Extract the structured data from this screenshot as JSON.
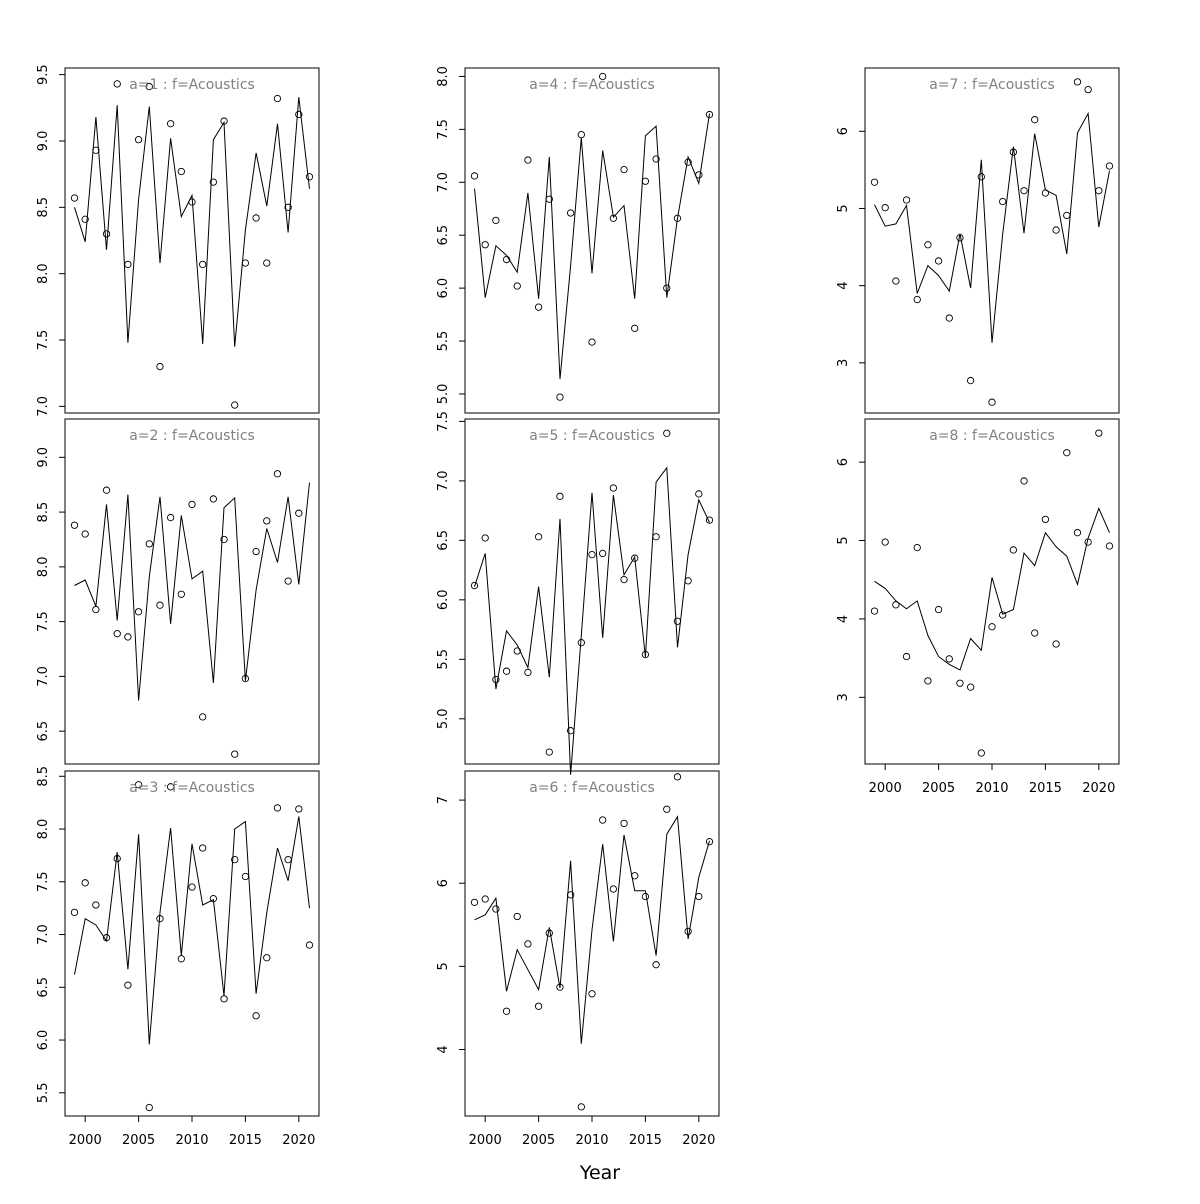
{
  "figure": {
    "xlabel": "Year"
  },
  "chart_data": [
    {
      "type": "line",
      "title": "a=1  :  f=Acoustics",
      "x_start": 1999,
      "ylim": [
        6.95,
        9.55
      ],
      "yticks": [
        "7.0",
        "7.5",
        "8.0",
        "8.5",
        "9.0",
        "9.5"
      ],
      "xticks": [],
      "observed": [
        8.57,
        8.41,
        8.93,
        8.3,
        9.43,
        8.07,
        9.01,
        9.41,
        7.3,
        9.13,
        8.77,
        8.54,
        8.07,
        8.69,
        9.15,
        7.01,
        8.08,
        8.42,
        8.08,
        9.32,
        8.5,
        9.2,
        8.73
      ],
      "fitted": [
        8.5,
        8.24,
        9.18,
        8.18,
        9.27,
        7.48,
        8.56,
        9.26,
        8.08,
        9.02,
        8.43,
        8.59,
        7.47,
        9.01,
        9.14,
        7.45,
        8.33,
        8.91,
        8.51,
        9.13,
        8.31,
        9.33,
        8.64
      ]
    },
    {
      "type": "line",
      "title": "a=2  :  f=Acoustics",
      "x_start": 1999,
      "ylim": [
        6.2,
        9.35
      ],
      "yticks": [
        "6.5",
        "7.0",
        "7.5",
        "8.0",
        "8.5",
        "9.0"
      ],
      "xticks": [],
      "observed": [
        8.38,
        8.3,
        7.61,
        8.7,
        7.39,
        7.36,
        7.59,
        8.21,
        7.65,
        8.45,
        7.75,
        8.57,
        6.63,
        8.62,
        8.25,
        6.29,
        6.98,
        8.14,
        8.42,
        8.85,
        7.87,
        8.49,
        null
      ],
      "fitted": [
        7.83,
        7.88,
        7.64,
        8.57,
        7.51,
        8.66,
        6.78,
        7.91,
        8.64,
        7.48,
        8.47,
        7.89,
        7.96,
        6.94,
        8.54,
        8.63,
        6.96,
        7.79,
        8.35,
        8.04,
        8.64,
        7.84,
        8.77
      ]
    },
    {
      "type": "line",
      "title": "a=3  :  f=Acoustics",
      "x_start": 1999,
      "ylim": [
        5.28,
        8.55
      ],
      "yticks": [
        "5.5",
        "6.0",
        "6.5",
        "7.0",
        "7.5",
        "8.0",
        "8.5"
      ],
      "xticks": [
        "2000",
        "2005",
        "2010",
        "2015",
        "2020"
      ],
      "observed": [
        7.21,
        7.49,
        7.28,
        6.97,
        7.72,
        6.52,
        8.42,
        5.36,
        7.15,
        8.4,
        6.77,
        7.45,
        7.82,
        7.34,
        6.39,
        7.71,
        7.55,
        6.23,
        6.78,
        8.2,
        7.71,
        8.19,
        6.9
      ],
      "fitted": [
        6.62,
        7.15,
        7.09,
        6.94,
        7.78,
        6.67,
        7.95,
        5.96,
        7.21,
        8.01,
        6.8,
        7.86,
        7.28,
        7.33,
        6.42,
        8.0,
        8.07,
        6.44,
        7.21,
        7.82,
        7.51,
        8.12,
        7.25
      ]
    },
    {
      "type": "line",
      "title": "a=4  :  f=Acoustics",
      "x_start": 1999,
      "ylim": [
        4.82,
        8.08
      ],
      "yticks": [
        "5.0",
        "5.5",
        "6.0",
        "6.5",
        "7.0",
        "7.5",
        "8.0"
      ],
      "xticks": [],
      "observed": [
        7.06,
        6.41,
        6.64,
        6.27,
        6.02,
        7.21,
        5.82,
        6.84,
        4.97,
        6.71,
        7.45,
        5.49,
        8.0,
        6.66,
        7.12,
        5.62,
        7.01,
        7.22,
        6.0,
        6.66,
        7.19,
        7.07,
        7.64
      ],
      "fitted": [
        6.94,
        5.91,
        6.4,
        6.31,
        6.15,
        6.9,
        5.9,
        7.24,
        5.14,
        6.21,
        7.42,
        6.14,
        7.3,
        6.67,
        6.78,
        5.9,
        7.44,
        7.53,
        5.91,
        6.66,
        7.24,
        6.99,
        7.65
      ]
    },
    {
      "type": "line",
      "title": "a=5  :  f=Acoustics",
      "x_start": 1999,
      "ylim": [
        4.62,
        7.52
      ],
      "yticks": [
        "5.0",
        "5.5",
        "6.0",
        "6.5",
        "7.0",
        "7.5"
      ],
      "xticks": [],
      "observed": [
        6.12,
        6.52,
        5.33,
        5.4,
        5.57,
        5.39,
        6.53,
        4.72,
        6.87,
        4.9,
        5.64,
        6.38,
        6.39,
        6.94,
        6.17,
        6.35,
        5.54,
        6.53,
        7.4,
        5.82,
        6.16,
        6.89,
        6.67
      ],
      "fitted": [
        6.11,
        6.39,
        5.25,
        5.74,
        5.62,
        5.43,
        6.11,
        5.35,
        6.68,
        4.53,
        5.7,
        6.9,
        5.68,
        6.88,
        6.21,
        6.36,
        5.52,
        6.99,
        7.11,
        5.6,
        6.38,
        6.84,
        6.65
      ]
    },
    {
      "type": "line",
      "title": "a=6  :  f=Acoustics",
      "x_start": 1999,
      "ylim": [
        3.2,
        7.35
      ],
      "yticks": [
        "4",
        "5",
        "6",
        "7"
      ],
      "xticks": [
        "2000",
        "2005",
        "2010",
        "2015",
        "2020"
      ],
      "observed": [
        5.77,
        5.81,
        5.69,
        4.46,
        5.6,
        5.27,
        4.52,
        5.4,
        4.75,
        5.86,
        3.31,
        4.67,
        6.76,
        5.93,
        6.72,
        6.09,
        5.84,
        5.02,
        6.89,
        7.28,
        5.42,
        5.84,
        6.5
      ],
      "fitted": [
        5.56,
        5.62,
        5.82,
        4.7,
        5.2,
        4.96,
        4.72,
        5.47,
        4.74,
        6.27,
        4.07,
        5.44,
        6.47,
        5.3,
        6.58,
        5.91,
        5.91,
        5.13,
        6.59,
        6.8,
        5.33,
        6.07,
        6.51
      ]
    },
    {
      "type": "line",
      "title": "a=7  :  f=Acoustics",
      "x_start": 1999,
      "ylim": [
        2.35,
        6.82
      ],
      "yticks": [
        "3",
        "4",
        "5",
        "6"
      ],
      "xticks": [],
      "observed": [
        5.34,
        5.01,
        4.06,
        5.11,
        3.82,
        4.53,
        4.32,
        3.58,
        4.62,
        2.77,
        5.41,
        2.49,
        5.09,
        5.73,
        5.23,
        6.15,
        5.2,
        4.72,
        4.91,
        6.64,
        6.54,
        5.23,
        5.55
      ],
      "fitted": [
        5.05,
        4.77,
        4.8,
        5.04,
        3.9,
        4.26,
        4.13,
        3.93,
        4.67,
        3.97,
        5.63,
        3.26,
        4.67,
        5.8,
        4.68,
        5.97,
        5.24,
        5.17,
        4.41,
        5.98,
        6.23,
        4.76,
        5.49
      ]
    },
    {
      "type": "line",
      "title": "a=8  :  f=Acoustics",
      "x_start": 1999,
      "ylim": [
        2.15,
        6.55
      ],
      "yticks": [
        "3",
        "4",
        "5",
        "6"
      ],
      "xticks": [
        "2000",
        "2005",
        "2010",
        "2015",
        "2020"
      ],
      "observed": [
        4.1,
        4.98,
        4.18,
        3.52,
        4.91,
        3.21,
        4.12,
        3.49,
        3.18,
        3.13,
        2.29,
        3.9,
        4.05,
        4.88,
        5.76,
        3.82,
        5.27,
        3.68,
        6.12,
        5.1,
        4.98,
        6.37,
        4.93
      ],
      "fitted": [
        4.48,
        4.39,
        4.23,
        4.13,
        4.23,
        3.79,
        3.52,
        3.42,
        3.35,
        3.75,
        3.6,
        4.53,
        4.06,
        4.12,
        4.84,
        4.68,
        5.1,
        4.92,
        4.8,
        4.44,
        5.03,
        5.41,
        5.1
      ]
    }
  ]
}
